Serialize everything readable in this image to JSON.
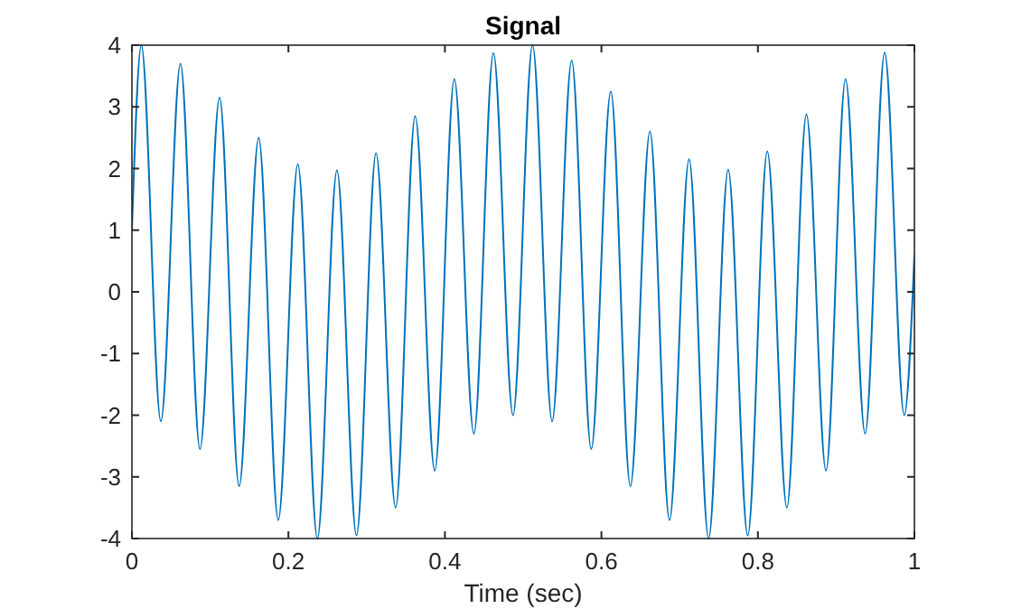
{
  "chart_data": {
    "type": "line",
    "title": "Signal",
    "xlabel": "Time (sec)",
    "xlim": [
      0,
      1
    ],
    "ylim": [
      -4,
      4
    ],
    "xticks": [
      0,
      0.2,
      0.4,
      0.6,
      0.8,
      1
    ],
    "yticks": [
      -4,
      -3,
      -2,
      -1,
      0,
      1,
      2,
      3,
      4
    ],
    "grid": false,
    "marker": "none",
    "line_style": "solid",
    "series": [
      {
        "color": "#0072bd",
        "x": [
          0,
          0.012,
          0.037,
          0.062,
          0.087,
          0.112,
          0.137,
          0.162,
          0.187,
          0.212,
          0.237,
          0.262,
          0.287,
          0.312,
          0.337,
          0.362,
          0.387,
          0.412,
          0.437,
          0.462,
          0.487,
          0.512,
          0.537,
          0.562,
          0.587,
          0.612,
          0.637,
          0.662,
          0.687,
          0.712,
          0.737,
          0.762,
          0.787,
          0.812,
          0.837,
          0.862,
          0.887,
          0.912,
          0.937,
          0.962,
          0.987,
          1
        ],
        "values": [
          1.0,
          4.0,
          -2.1,
          3.7,
          -2.55,
          3.15,
          -3.15,
          2.5,
          -3.7,
          2.07,
          -4.0,
          1.97,
          -3.95,
          2.25,
          -3.5,
          2.85,
          -2.9,
          3.45,
          -2.3,
          3.87,
          -2.0,
          4.0,
          -2.1,
          3.75,
          -2.55,
          3.25,
          -3.15,
          2.6,
          -3.7,
          2.15,
          -4.0,
          1.98,
          -3.95,
          2.28,
          -3.5,
          2.88,
          -2.9,
          3.45,
          -2.3,
          3.88,
          -2.0,
          0.6
        ]
      }
    ]
  }
}
